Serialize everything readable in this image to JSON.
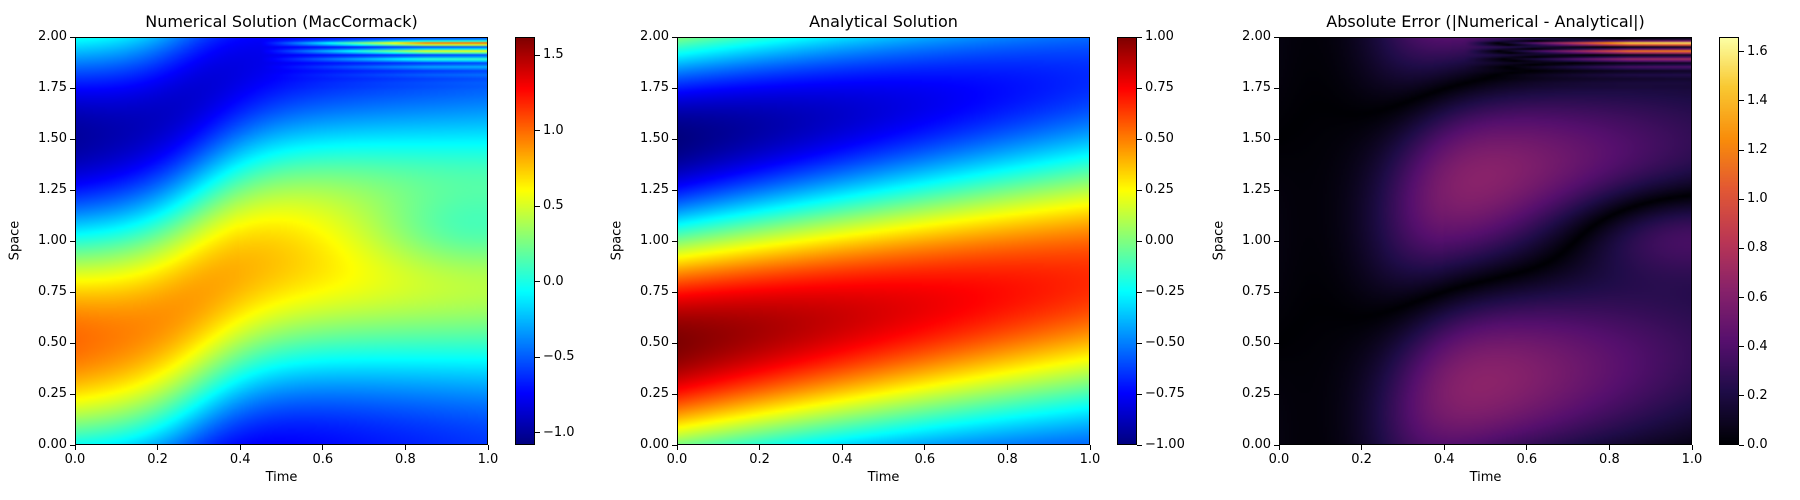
{
  "chart_data": [
    {
      "type": "heatmap",
      "title": "Numerical Solution (MacCormack)",
      "xlabel": "Time",
      "ylabel": "Space",
      "xlim": [
        0.0,
        1.0
      ],
      "ylim": [
        0.0,
        2.0
      ],
      "xticks": [
        "0.0",
        "0.2",
        "0.4",
        "0.6",
        "0.8",
        "1.0"
      ],
      "yticks": [
        "0.00",
        "0.25",
        "0.50",
        "0.75",
        "1.00",
        "1.25",
        "1.50",
        "1.75",
        "2.00"
      ],
      "colormap": "jet",
      "color_range": [
        -1.08,
        1.62
      ],
      "colorbar_ticks": [
        "−1.0",
        "−0.5",
        "0.0",
        "0.5",
        "1.0",
        "1.5"
      ],
      "colorbar_tick_values": [
        -1.0,
        -0.5,
        0.0,
        0.5,
        1.0,
        1.5
      ],
      "field": "numerical"
    },
    {
      "type": "heatmap",
      "title": "Analytical Solution",
      "xlabel": "Time",
      "ylabel": "Space",
      "xlim": [
        0.0,
        1.0
      ],
      "ylim": [
        0.0,
        2.0
      ],
      "xticks": [
        "0.0",
        "0.2",
        "0.4",
        "0.6",
        "0.8",
        "1.0"
      ],
      "yticks": [
        "0.00",
        "0.25",
        "0.50",
        "0.75",
        "1.00",
        "1.25",
        "1.50",
        "1.75",
        "2.00"
      ],
      "colormap": "jet",
      "color_range": [
        -1.0,
        1.0
      ],
      "colorbar_ticks": [
        "−1.00",
        "−0.75",
        "−0.50",
        "−0.25",
        "0.00",
        "0.25",
        "0.50",
        "0.75",
        "1.00"
      ],
      "colorbar_tick_values": [
        -1.0,
        -0.75,
        -0.5,
        -0.25,
        0.0,
        0.25,
        0.5,
        0.75,
        1.0
      ],
      "field": "analytical"
    },
    {
      "type": "heatmap",
      "title": "Absolute Error (|Numerical - Analytical|)",
      "xlabel": "Time",
      "ylabel": "Space",
      "xlim": [
        0.0,
        1.0
      ],
      "ylim": [
        0.0,
        2.0
      ],
      "xticks": [
        "0.0",
        "0.2",
        "0.4",
        "0.6",
        "0.8",
        "1.0"
      ],
      "yticks": [
        "0.00",
        "0.25",
        "0.50",
        "0.75",
        "1.00",
        "1.25",
        "1.50",
        "1.75",
        "2.00"
      ],
      "colormap": "inferno",
      "color_range": [
        0.0,
        1.66
      ],
      "colorbar_ticks": [
        "0.0",
        "0.2",
        "0.4",
        "0.6",
        "0.8",
        "1.0",
        "1.2",
        "1.4",
        "1.6"
      ],
      "colorbar_tick_values": [
        0.0,
        0.2,
        0.4,
        0.6,
        0.8,
        1.0,
        1.2,
        1.4,
        1.6
      ],
      "field": "error"
    }
  ]
}
